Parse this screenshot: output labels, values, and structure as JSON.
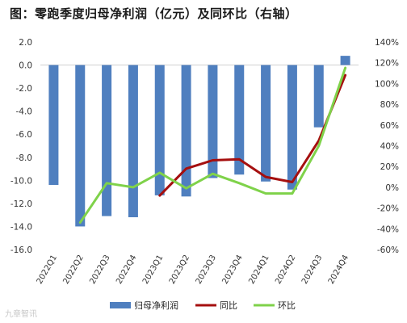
{
  "chart_data": {
    "type": "bar",
    "title": "图：零跑季度归母净利润（亿元）及同环比（右轴）",
    "categories": [
      "2022Q1",
      "2022Q2",
      "2022Q3",
      "2022Q4",
      "2023Q1",
      "2023Q2",
      "2023Q3",
      "2023Q4",
      "2024Q1",
      "2024Q2",
      "2024Q3",
      "2024Q4"
    ],
    "series": [
      {
        "name": "归母净利润",
        "type": "bar",
        "axis": "left",
        "color": "#4f7fbf",
        "values": [
          -10.4,
          -14.0,
          -13.1,
          -13.2,
          -11.3,
          -11.4,
          -9.8,
          -9.5,
          -10.1,
          -10.8,
          -5.4,
          0.8
        ]
      },
      {
        "name": "同比",
        "type": "line",
        "axis": "right",
        "color": "#a50f0f",
        "values": [
          null,
          null,
          null,
          null,
          -8,
          18,
          26,
          27,
          10,
          5,
          45,
          108
        ]
      },
      {
        "name": "环比",
        "type": "line",
        "axis": "right",
        "color": "#7fd24a",
        "values": [
          null,
          -34,
          4,
          0,
          14,
          -1,
          13,
          4,
          -6,
          -6,
          40,
          115
        ]
      }
    ],
    "yleft": {
      "min": -16,
      "max": 2,
      "ticks": [
        "2.0",
        "0.0",
        "-2.0",
        "-4.0",
        "-6.0",
        "-8.0",
        "-10.0",
        "-12.0",
        "-14.0",
        "-16.0"
      ]
    },
    "yright": {
      "min": -60,
      "max": 140,
      "ticks": [
        "140%",
        "120%",
        "100%",
        "80%",
        "60%",
        "40%",
        "20%",
        "0%",
        "-20%",
        "-40%",
        "-60%"
      ]
    },
    "grid": false,
    "legend": "bottom"
  },
  "watermark": "九章智讯"
}
